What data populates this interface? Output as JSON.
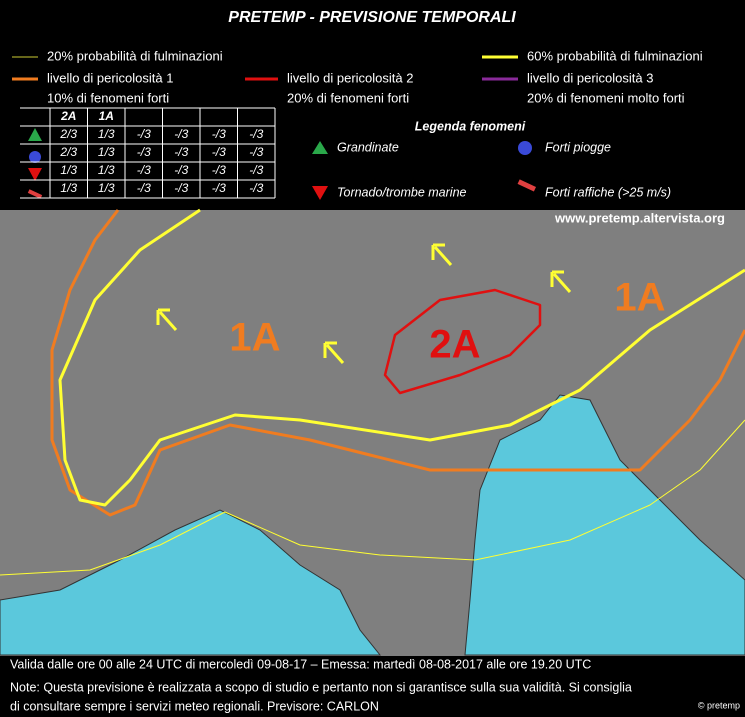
{
  "header": {
    "title": "PRETEMP - PREVISIONE TEMPORALI"
  },
  "legend": {
    "yellow_thin": "20% probabilità di fulminazioni",
    "yellow_thick": "60% probabilità di fulminazioni",
    "level1": [
      "livello di pericolosità 1",
      "10% di fenomeni forti"
    ],
    "level2": [
      "livello di pericolosità 2",
      "20% di fenomeni forti"
    ],
    "level3": [
      "livello di pericolosità 3",
      "20% di fenomeni molto forti"
    ]
  },
  "table": {
    "headers": [
      "2A",
      "1A"
    ],
    "rows": [
      [
        "2/3",
        "1/3",
        "-/3",
        "-/3",
        "-/3",
        "-/3"
      ],
      [
        "2/3",
        "1/3",
        "-/3",
        "-/3",
        "-/3",
        "-/3"
      ],
      [
        "1/3",
        "1/3",
        "-/3",
        "-/3",
        "-/3",
        "-/3"
      ],
      [
        "1/3",
        "1/3",
        "-/3",
        "-/3",
        "-/3",
        "-/3"
      ]
    ]
  },
  "phenomena": {
    "title": "Legenda fenomeni",
    "hail": "Grandinate",
    "rain": "Forti piogge",
    "tornado": "Tornado/trombe marine",
    "wind": "Forti raffiche (>25 m/s)"
  },
  "website": "www.pretemp.altervista.org",
  "map_labels": [
    "1A",
    "1A",
    "2A"
  ],
  "copyright": "© pretemp",
  "footer": {
    "validity": "Valida dalle ore 00 alle 24 UTC di mercoledì 09-08-17 – Emessa: martedì 08-08-2017 alle ore 19.20 UTC",
    "note1": "Note: Questa previsione è realizzata a scopo di studio e pertanto non si garantisce sulla sua validità. Si consiglia",
    "note2": "di consultare sempre i servizi meteo regionali. Previsore: CARLON"
  }
}
